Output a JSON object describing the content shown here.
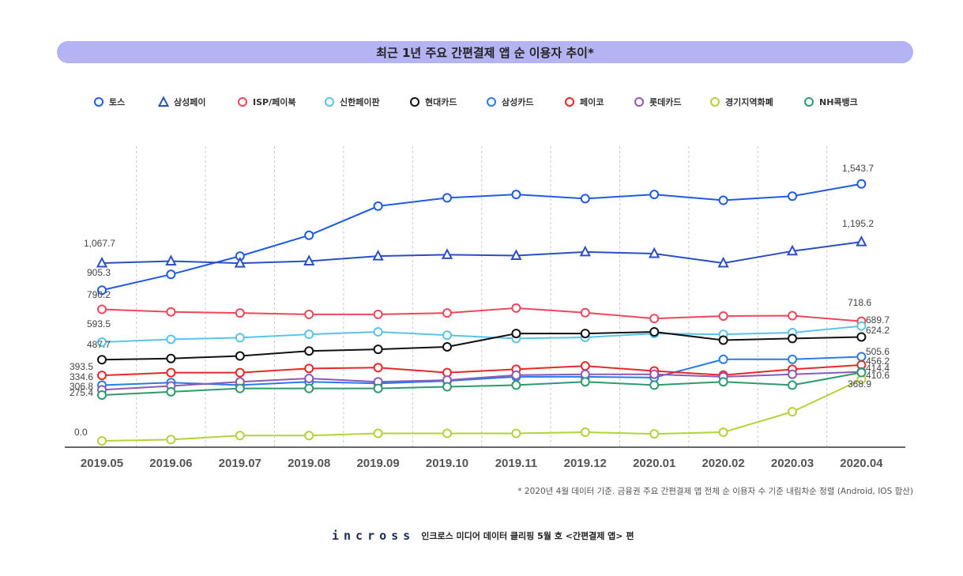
{
  "title": "최근 1년 주요 간편결제 앱 순 이용자 추이*",
  "footnote": "* 2020년 4월  데이터 기준.  금융권 주요 간편결제 앱 전체 순 이용자 수  기준 내림차순 정렬 (Android, IOS 합산)",
  "brand": {
    "logo": "incross",
    "caption": "인크로스 미디어 데이터 클리핑 5월 호 <간편결제 앱> 편"
  },
  "chart_data": {
    "type": "line",
    "title": "최근 1년 주요 간편결제 앱 순 이용자 추이*",
    "xlabel": "",
    "ylabel": "",
    "ylim": [
      0,
      1700
    ],
    "grid": "vertical dashed",
    "legend_position": "top",
    "categories": [
      "2019.05",
      "2019.06",
      "2019.07",
      "2019.08",
      "2019.09",
      "2019.10",
      "2019.11",
      "2019.12",
      "2020.01",
      "2020.02",
      "2020.03",
      "2020.04"
    ],
    "series": [
      {
        "name": "토스",
        "color": "#1f5ae6",
        "marker": "circle",
        "values": [
          905.3,
          1000,
          1110,
          1235,
          1410,
          1460,
          1480,
          1455,
          1480,
          1445,
          1470,
          1543.7
        ],
        "labels": [
          {
            "i": 0,
            "text": "905.3"
          },
          {
            "i": 11,
            "text": "1,543.7"
          }
        ]
      },
      {
        "name": "삼성페이",
        "color": "#2a4fc4",
        "marker": "triangle",
        "values": [
          1067.7,
          1080,
          1067,
          1080,
          1110,
          1118,
          1113,
          1135,
          1125,
          1068,
          1140,
          1195.2
        ],
        "labels": [
          {
            "i": 0,
            "text": "1,067.7"
          },
          {
            "i": 11,
            "text": "1,195.2"
          }
        ]
      },
      {
        "name": "ISP/페이북",
        "color": "#f0465a",
        "marker": "circle",
        "values": [
          790.2,
          775,
          768,
          760,
          760,
          768,
          798,
          770,
          735,
          750,
          752,
          718.6
        ],
        "labels": [
          {
            "i": 0,
            "text": "790.2"
          },
          {
            "i": 11,
            "text": "718.6"
          }
        ]
      },
      {
        "name": "신한페이판",
        "color": "#5bc3ea",
        "marker": "circle",
        "values": [
          593.5,
          610,
          620,
          640,
          655,
          635,
          615,
          622,
          645,
          640,
          650,
          689.7
        ],
        "labels": [
          {
            "i": 0,
            "text": "593.5"
          },
          {
            "i": 11,
            "text": "689.7"
          }
        ]
      },
      {
        "name": "현대카드",
        "color": "#111111",
        "marker": "circle",
        "values": [
          487.7,
          495,
          510,
          540,
          550,
          565,
          645,
          645,
          655,
          605,
          615,
          624.2
        ],
        "labels": [
          {
            "i": 0,
            "text": "487.7"
          },
          {
            "i": 11,
            "text": "624.2"
          }
        ]
      },
      {
        "name": "삼성카드",
        "color": "#2a7ae8",
        "marker": "circle",
        "values": [
          334.6,
          350,
          335,
          355,
          345,
          360,
          385,
          385,
          380,
          490,
          490,
          505.6
        ],
        "labels": [
          {
            "i": 0,
            "text": "334.6"
          },
          {
            "i": 11,
            "text": "505.6"
          }
        ]
      },
      {
        "name": "페이코",
        "color": "#e82828",
        "marker": "circle",
        "values": [
          393.5,
          410,
          410,
          435,
          440,
          410,
          430,
          450,
          420,
          395,
          430,
          456.2
        ],
        "labels": [
          {
            "i": 0,
            "text": "393.5"
          },
          {
            "i": 11,
            "text": "456.2"
          }
        ]
      },
      {
        "name": "롯데카드",
        "color": "#8a5ab4",
        "marker": "circle",
        "values": [
          306.8,
          330,
          355,
          375,
          355,
          365,
          395,
          400,
          400,
          385,
          400,
          414.4
        ],
        "labels": [
          {
            "i": 0,
            "text": "306.8"
          },
          {
            "i": 11,
            "text": "414.4"
          }
        ]
      },
      {
        "name": "경기지역화폐",
        "color": "#b4d23c",
        "marker": "circle",
        "values": [
          0.0,
          8,
          32,
          32,
          45,
          45,
          45,
          52,
          42,
          52,
          175,
          368.9
        ],
        "labels": [
          {
            "i": 0,
            "text": "0.0"
          },
          {
            "i": 11,
            "text": "368.9"
          }
        ]
      },
      {
        "name": "NH콕뱅크",
        "color": "#2e9a6e",
        "marker": "circle",
        "values": [
          275.4,
          295,
          315,
          315,
          315,
          325,
          335,
          355,
          335,
          355,
          335,
          410.6
        ],
        "labels": [
          {
            "i": 0,
            "text": "275.4"
          },
          {
            "i": 11,
            "text": "410.6"
          }
        ]
      }
    ]
  }
}
